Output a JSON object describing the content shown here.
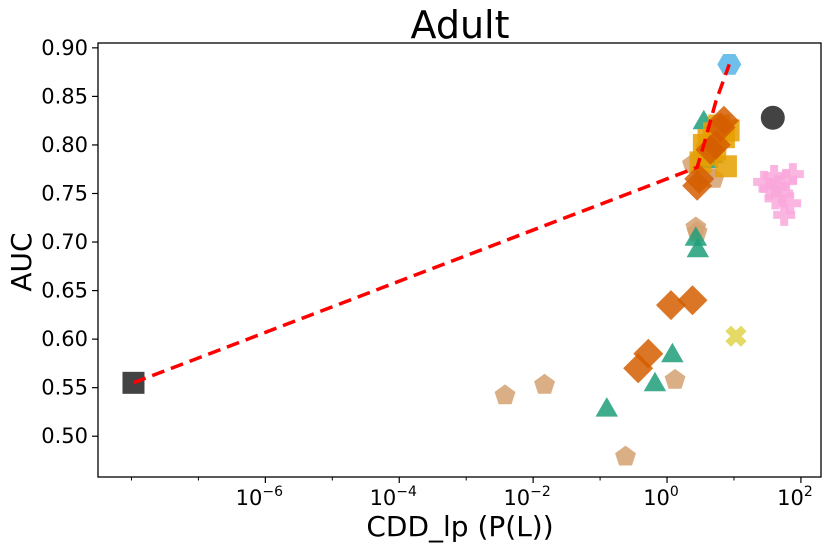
{
  "chart_data": {
    "type": "scatter",
    "title": "Adult",
    "xlabel": "CDD_lp (P(L))",
    "ylabel": "AUC",
    "xscale": "log",
    "xlim_log10": [
      -8.5,
      2.3
    ],
    "ylim": [
      0.458,
      0.905
    ],
    "x_ticks": [
      {
        "base": "10",
        "exp": "−6",
        "log10": -6
      },
      {
        "base": "10",
        "exp": "−4",
        "log10": -4
      },
      {
        "base": "10",
        "exp": "−2",
        "log10": -2
      },
      {
        "base": "10",
        "exp": "0",
        "log10": 0
      },
      {
        "base": "10",
        "exp": "2",
        "log10": 2
      }
    ],
    "y_ticks": [
      "0.50",
      "0.55",
      "0.60",
      "0.65",
      "0.70",
      "0.75",
      "0.80",
      "0.85",
      "0.90"
    ],
    "grid": false,
    "series": [
      {
        "name": "black-square",
        "marker": "square",
        "color": "#222222",
        "points": [
          {
            "log10x": -7.97,
            "y": 0.555
          }
        ]
      },
      {
        "name": "black-circle",
        "marker": "circle",
        "color": "#222222",
        "points": [
          {
            "log10x": 1.58,
            "y": 0.828
          }
        ]
      },
      {
        "name": "blue-hexagon",
        "marker": "hexagon",
        "color": "#56b4e9",
        "points": [
          {
            "log10x": 0.93,
            "y": 0.883
          }
        ]
      },
      {
        "name": "yellow-x",
        "marker": "x",
        "color": "#e0d34a",
        "points": [
          {
            "log10x": 1.03,
            "y": 0.603
          }
        ]
      },
      {
        "name": "tan-pentagon",
        "marker": "pentagon",
        "color": "#d4a171",
        "points": [
          {
            "log10x": -2.42,
            "y": 0.542
          },
          {
            "log10x": -1.83,
            "y": 0.553
          },
          {
            "log10x": -0.62,
            "y": 0.479
          },
          {
            "log10x": 0.12,
            "y": 0.558
          },
          {
            "log10x": 0.43,
            "y": 0.715
          },
          {
            "log10x": 0.45,
            "y": 0.71
          },
          {
            "log10x": 0.7,
            "y": 0.765
          },
          {
            "log10x": 0.38,
            "y": 0.78
          },
          {
            "log10x": 0.58,
            "y": 0.77
          }
        ]
      },
      {
        "name": "green-triangle",
        "marker": "triangle",
        "color": "#1f9e7a",
        "points": [
          {
            "log10x": -0.9,
            "y": 0.529
          },
          {
            "log10x": -0.18,
            "y": 0.555
          },
          {
            "log10x": 0.08,
            "y": 0.585
          },
          {
            "log10x": 0.43,
            "y": 0.705
          },
          {
            "log10x": 0.46,
            "y": 0.693
          },
          {
            "log10x": 0.6,
            "y": 0.785
          },
          {
            "log10x": 0.68,
            "y": 0.79
          },
          {
            "log10x": 0.55,
            "y": 0.825
          }
        ]
      },
      {
        "name": "pink-plus",
        "marker": "plus",
        "color": "#f9a8dc",
        "points": [
          {
            "log10x": 1.45,
            "y": 0.762
          },
          {
            "log10x": 1.53,
            "y": 0.755
          },
          {
            "log10x": 1.6,
            "y": 0.768
          },
          {
            "log10x": 1.66,
            "y": 0.758
          },
          {
            "log10x": 1.72,
            "y": 0.75
          },
          {
            "log10x": 1.78,
            "y": 0.764
          },
          {
            "log10x": 1.84,
            "y": 0.74
          },
          {
            "log10x": 1.75,
            "y": 0.728
          },
          {
            "log10x": 1.62,
            "y": 0.745
          },
          {
            "log10x": 1.88,
            "y": 0.77
          }
        ]
      },
      {
        "name": "gold-square",
        "marker": "square",
        "color": "#e69f00",
        "points": [
          {
            "log10x": 0.55,
            "y": 0.8
          },
          {
            "log10x": 0.62,
            "y": 0.805
          },
          {
            "log10x": 0.7,
            "y": 0.812
          },
          {
            "log10x": 0.78,
            "y": 0.82
          },
          {
            "log10x": 0.85,
            "y": 0.808
          },
          {
            "log10x": 0.92,
            "y": 0.815
          },
          {
            "log10x": 0.6,
            "y": 0.79
          },
          {
            "log10x": 0.72,
            "y": 0.795
          },
          {
            "log10x": 0.88,
            "y": 0.778
          },
          {
            "log10x": 0.5,
            "y": 0.782
          }
        ]
      },
      {
        "name": "orange-diamond",
        "marker": "diamond",
        "color": "#d55e00",
        "points": [
          {
            "log10x": -0.43,
            "y": 0.57
          },
          {
            "log10x": -0.28,
            "y": 0.585
          },
          {
            "log10x": 0.06,
            "y": 0.635
          },
          {
            "log10x": 0.38,
            "y": 0.64
          },
          {
            "log10x": 0.45,
            "y": 0.758
          },
          {
            "log10x": 0.48,
            "y": 0.765
          },
          {
            "log10x": 0.65,
            "y": 0.795
          },
          {
            "log10x": 0.73,
            "y": 0.8
          },
          {
            "log10x": 0.8,
            "y": 0.818
          },
          {
            "log10x": 0.85,
            "y": 0.825
          }
        ]
      }
    ],
    "frontier_line": {
      "color": "#ff0000",
      "style": "dashed",
      "points": [
        {
          "log10x": -7.97,
          "y": 0.555
        },
        {
          "log10x": 0.45,
          "y": 0.777
        },
        {
          "log10x": 0.55,
          "y": 0.8
        },
        {
          "log10x": 0.73,
          "y": 0.845
        },
        {
          "log10x": 0.93,
          "y": 0.883
        }
      ]
    }
  }
}
